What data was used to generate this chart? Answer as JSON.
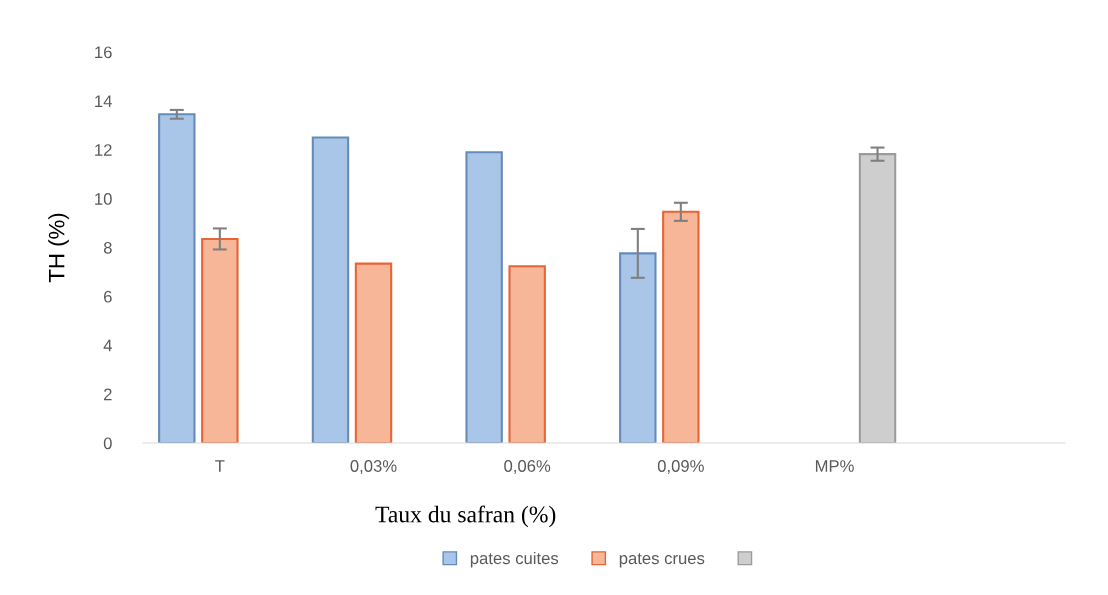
{
  "chart_data": {
    "type": "bar",
    "xlabel": "Taux du safran (%)",
    "ylabel": "TH (%)",
    "categories": [
      "T",
      "0,03%",
      "0,06%",
      "0,09%",
      "MP%",
      null
    ],
    "series": [
      {
        "name": "pates cuites",
        "color": "#a9c6e8",
        "values": [
          13.45,
          12.5,
          11.9,
          7.76,
          null,
          null
        ],
        "errors": [
          0.18,
          null,
          null,
          1.0,
          null,
          null
        ]
      },
      {
        "name": "pates crues",
        "color": "#f7b697",
        "values": [
          8.35,
          7.34,
          7.23,
          9.46,
          null,
          null
        ],
        "errors": [
          0.43,
          null,
          null,
          0.37,
          null,
          null
        ]
      },
      {
        "color": "#cecece",
        "values": [
          null,
          null,
          null,
          null,
          11.82,
          null
        ],
        "errors": [
          null,
          null,
          null,
          null,
          0.27,
          null
        ]
      }
    ],
    "ylim": [
      0,
      16
    ],
    "yticks": [
      0,
      2,
      4,
      6,
      8,
      10,
      12,
      14,
      16
    ],
    "grid": false,
    "legend": "bottom"
  }
}
